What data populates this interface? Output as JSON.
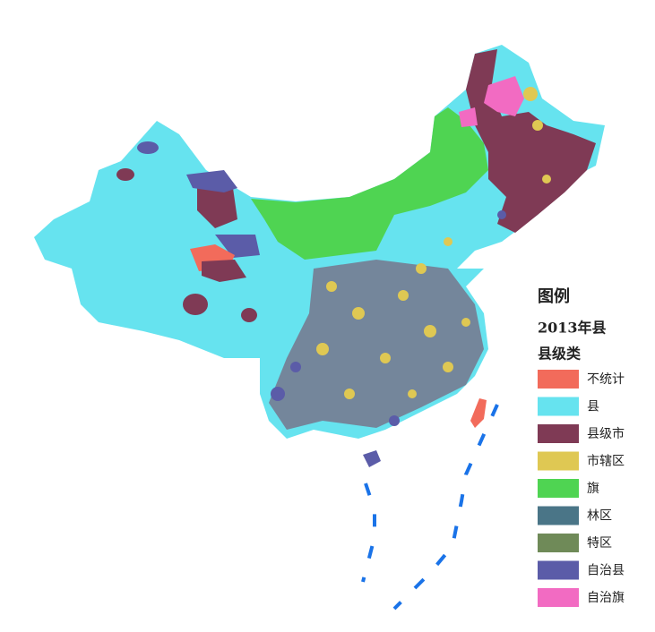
{
  "legend": {
    "title": "图例",
    "subtitle": "2013年县",
    "heading": "县级类",
    "items": [
      {
        "label": "不统计",
        "color": "#f26b5b"
      },
      {
        "label": "县",
        "color": "#66e3ef"
      },
      {
        "label": "县级市",
        "color": "#7f3a55"
      },
      {
        "label": "市辖区",
        "color": "#dfc853"
      },
      {
        "label": "旗",
        "color": "#4fd452"
      },
      {
        "label": "林区",
        "color": "#4a7587"
      },
      {
        "label": "特区",
        "color": "#6f8a58"
      },
      {
        "label": "自治县",
        "color": "#5b5ca8"
      },
      {
        "label": "自治旗",
        "color": "#f26bc2"
      }
    ]
  }
}
